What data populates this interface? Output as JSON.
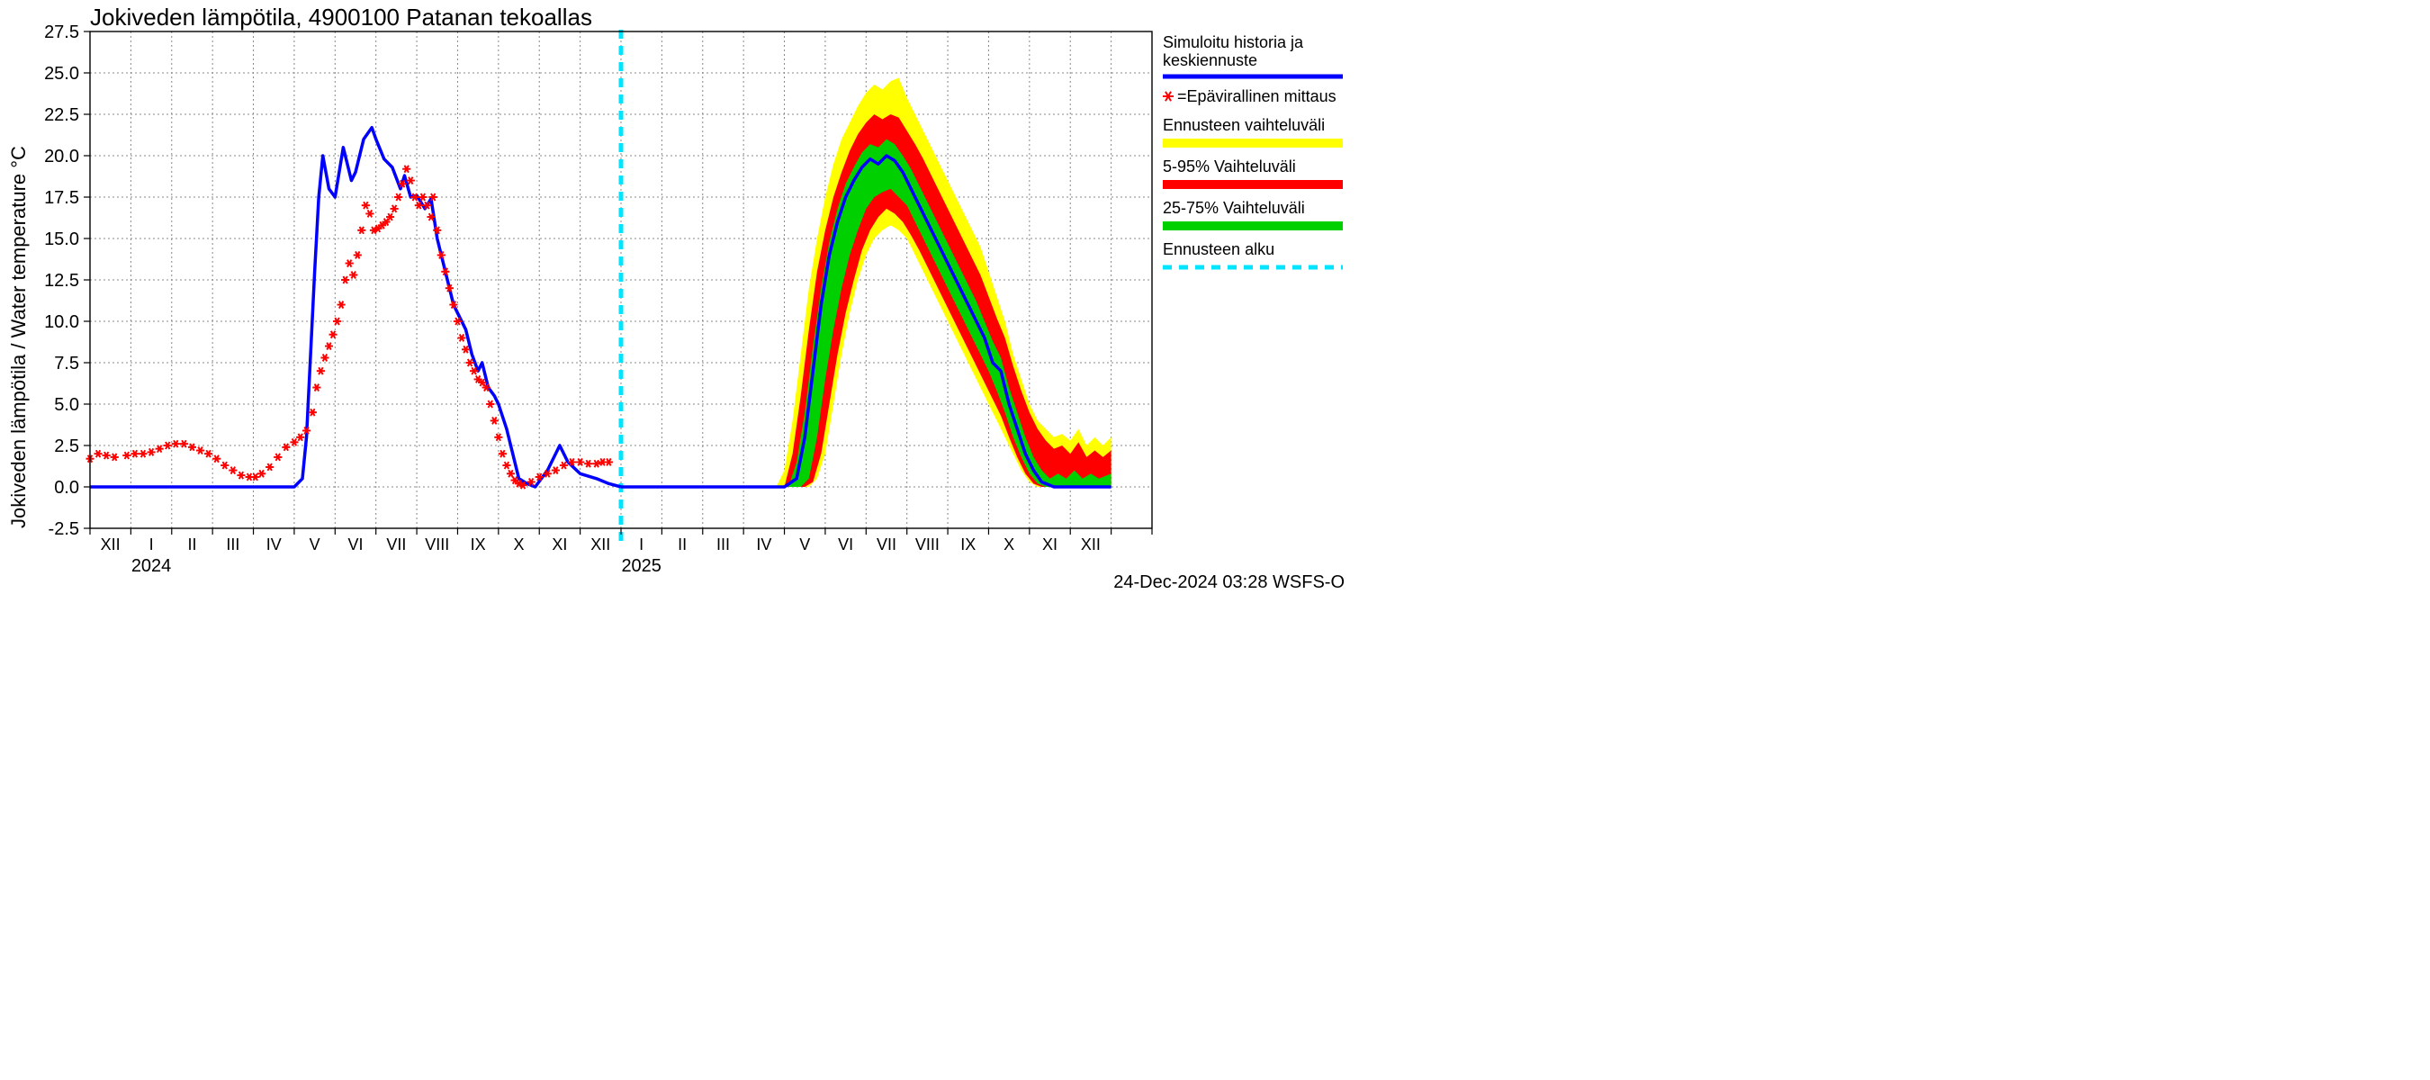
{
  "chart": {
    "type": "line",
    "title": "Jokiveden lämpötila, 4900100 Patanan tekoallas",
    "y_axis_label": "Jokiveden lämpötila / Water temperature   °C",
    "footer": "24-Dec-2024 03:28 WSFS-O",
    "background_color": "#ffffff",
    "grid_color": "#888888",
    "axis_color": "#000000",
    "title_fontsize": 26,
    "label_fontsize": 22,
    "tick_fontsize": 20,
    "xlim_months": 26,
    "ylim": [
      -2.5,
      27.5
    ],
    "ytick_step": 2.5,
    "y_ticks": [
      -2.5,
      0.0,
      2.5,
      5.0,
      7.5,
      10.0,
      12.5,
      15.0,
      17.5,
      20.0,
      22.5,
      25.0,
      27.5
    ],
    "x_month_labels": [
      "XII",
      "I",
      "II",
      "III",
      "IV",
      "V",
      "VI",
      "VII",
      "VIII",
      "IX",
      "X",
      "XI",
      "XII",
      "I",
      "II",
      "III",
      "IV",
      "V",
      "VI",
      "VII",
      "VIII",
      "IX",
      "X",
      "XI",
      "XII"
    ],
    "year_labels": [
      {
        "label": "2024",
        "month_index": 1.5
      },
      {
        "label": "2025",
        "month_index": 13.5
      }
    ],
    "forecast_start_month": 13.0,
    "legend": [
      {
        "key": "sim",
        "label_line1": "Simuloitu historia ja",
        "label_line2": "keskiennuste",
        "color": "#0000ff",
        "type": "line",
        "width": 4
      },
      {
        "key": "meas",
        "label_line1": "=Epävirallinen mittaus",
        "color": "#ff0000",
        "type": "marker",
        "marker": "*"
      },
      {
        "key": "range_full",
        "label_line1": "Ennusteen vaihteluväli",
        "color": "#ffff00",
        "type": "band"
      },
      {
        "key": "range_5_95",
        "label_line1": "5-95% Vaihteluväli",
        "color": "#ff0000",
        "type": "band"
      },
      {
        "key": "range_25_75",
        "label_line1": "25-75% Vaihteluväli",
        "color": "#00d000",
        "type": "band"
      },
      {
        "key": "forecast_start",
        "label_line1": "Ennusteen alku",
        "color": "#00e5ff",
        "type": "dash",
        "width": 5
      }
    ],
    "colors": {
      "sim_line": "#0000ff",
      "measured": "#ff0000",
      "band_yellow": "#ffff00",
      "band_red": "#ff0000",
      "band_green": "#00d000",
      "forecast_dash": "#00e5ff"
    },
    "line_width": 3.5,
    "marker_size": 9,
    "sim_history": [
      [
        0.0,
        0.0
      ],
      [
        0.2,
        0.0
      ],
      [
        5.0,
        0.0
      ],
      [
        5.2,
        0.5
      ],
      [
        5.3,
        3.0
      ],
      [
        5.4,
        8.0
      ],
      [
        5.5,
        13.0
      ],
      [
        5.6,
        17.5
      ],
      [
        5.7,
        20.0
      ],
      [
        5.85,
        18.0
      ],
      [
        6.0,
        17.5
      ],
      [
        6.2,
        20.5
      ],
      [
        6.4,
        18.5
      ],
      [
        6.5,
        19.0
      ],
      [
        6.7,
        21.0
      ],
      [
        6.9,
        21.7
      ],
      [
        7.0,
        21.0
      ],
      [
        7.2,
        19.8
      ],
      [
        7.4,
        19.3
      ],
      [
        7.6,
        18.0
      ],
      [
        7.7,
        18.8
      ],
      [
        7.85,
        17.5
      ],
      [
        8.0,
        17.6
      ],
      [
        8.2,
        16.8
      ],
      [
        8.35,
        17.4
      ],
      [
        8.5,
        15.0
      ],
      [
        8.7,
        13.0
      ],
      [
        8.9,
        11.0
      ],
      [
        9.0,
        10.5
      ],
      [
        9.2,
        9.5
      ],
      [
        9.35,
        8.0
      ],
      [
        9.5,
        7.0
      ],
      [
        9.6,
        7.5
      ],
      [
        9.75,
        6.0
      ],
      [
        9.9,
        5.5
      ],
      [
        10.0,
        5.0
      ],
      [
        10.2,
        3.5
      ],
      [
        10.4,
        1.5
      ],
      [
        10.5,
        0.5
      ],
      [
        10.7,
        0.2
      ],
      [
        10.9,
        0.0
      ],
      [
        11.2,
        1.0
      ],
      [
        11.5,
        2.5
      ],
      [
        11.7,
        1.5
      ],
      [
        12.0,
        0.8
      ],
      [
        12.4,
        0.5
      ],
      [
        12.7,
        0.2
      ],
      [
        13.0,
        0.0
      ]
    ],
    "measured": [
      [
        0.0,
        1.7
      ],
      [
        0.2,
        2.0
      ],
      [
        0.4,
        1.9
      ],
      [
        0.6,
        1.8
      ],
      [
        0.9,
        1.9
      ],
      [
        1.1,
        2.0
      ],
      [
        1.3,
        2.0
      ],
      [
        1.5,
        2.1
      ],
      [
        1.7,
        2.3
      ],
      [
        1.9,
        2.5
      ],
      [
        2.1,
        2.6
      ],
      [
        2.3,
        2.6
      ],
      [
        2.5,
        2.4
      ],
      [
        2.7,
        2.2
      ],
      [
        2.9,
        2.0
      ],
      [
        3.1,
        1.7
      ],
      [
        3.3,
        1.3
      ],
      [
        3.5,
        1.0
      ],
      [
        3.7,
        0.7
      ],
      [
        3.9,
        0.6
      ],
      [
        4.05,
        0.6
      ],
      [
        4.2,
        0.8
      ],
      [
        4.4,
        1.2
      ],
      [
        4.6,
        1.8
      ],
      [
        4.8,
        2.4
      ],
      [
        5.0,
        2.7
      ],
      [
        5.15,
        3.0
      ],
      [
        5.3,
        3.4
      ],
      [
        5.45,
        4.5
      ],
      [
        5.55,
        6.0
      ],
      [
        5.65,
        7.0
      ],
      [
        5.75,
        7.8
      ],
      [
        5.85,
        8.5
      ],
      [
        5.95,
        9.2
      ],
      [
        6.05,
        10.0
      ],
      [
        6.15,
        11.0
      ],
      [
        6.25,
        12.5
      ],
      [
        6.35,
        13.5
      ],
      [
        6.45,
        12.8
      ],
      [
        6.55,
        14.0
      ],
      [
        6.65,
        15.5
      ],
      [
        6.75,
        17.0
      ],
      [
        6.85,
        16.5
      ],
      [
        6.95,
        15.5
      ],
      [
        7.05,
        15.6
      ],
      [
        7.15,
        15.8
      ],
      [
        7.25,
        16.0
      ],
      [
        7.35,
        16.3
      ],
      [
        7.45,
        16.8
      ],
      [
        7.55,
        17.5
      ],
      [
        7.65,
        18.3
      ],
      [
        7.75,
        19.2
      ],
      [
        7.85,
        18.5
      ],
      [
        7.95,
        17.5
      ],
      [
        8.05,
        17.0
      ],
      [
        8.15,
        17.5
      ],
      [
        8.25,
        17.0
      ],
      [
        8.35,
        16.3
      ],
      [
        8.4,
        17.5
      ],
      [
        8.5,
        15.5
      ],
      [
        8.6,
        14.0
      ],
      [
        8.7,
        13.0
      ],
      [
        8.8,
        12.0
      ],
      [
        8.9,
        11.0
      ],
      [
        9.0,
        10.0
      ],
      [
        9.1,
        9.0
      ],
      [
        9.2,
        8.3
      ],
      [
        9.3,
        7.5
      ],
      [
        9.4,
        7.0
      ],
      [
        9.5,
        6.5
      ],
      [
        9.6,
        6.3
      ],
      [
        9.7,
        6.0
      ],
      [
        9.8,
        5.0
      ],
      [
        9.9,
        4.0
      ],
      [
        10.0,
        3.0
      ],
      [
        10.1,
        2.0
      ],
      [
        10.2,
        1.3
      ],
      [
        10.3,
        0.8
      ],
      [
        10.4,
        0.4
      ],
      [
        10.5,
        0.2
      ],
      [
        10.6,
        0.1
      ],
      [
        10.8,
        0.3
      ],
      [
        11.0,
        0.6
      ],
      [
        11.2,
        0.8
      ],
      [
        11.4,
        1.0
      ],
      [
        11.6,
        1.3
      ],
      [
        11.8,
        1.5
      ],
      [
        12.0,
        1.5
      ],
      [
        12.2,
        1.4
      ],
      [
        12.4,
        1.4
      ],
      [
        12.55,
        1.5
      ],
      [
        12.7,
        1.5
      ]
    ],
    "forecast_center": [
      [
        13.0,
        0.0
      ],
      [
        16.5,
        0.0
      ],
      [
        17.0,
        0.0
      ],
      [
        17.3,
        0.5
      ],
      [
        17.5,
        3.0
      ],
      [
        17.7,
        7.0
      ],
      [
        17.9,
        11.0
      ],
      [
        18.1,
        14.0
      ],
      [
        18.3,
        16.0
      ],
      [
        18.5,
        17.5
      ],
      [
        18.7,
        18.5
      ],
      [
        18.9,
        19.3
      ],
      [
        19.1,
        19.8
      ],
      [
        19.3,
        19.5
      ],
      [
        19.5,
        20.0
      ],
      [
        19.7,
        19.7
      ],
      [
        19.9,
        19.0
      ],
      [
        20.1,
        18.0
      ],
      [
        20.3,
        17.0
      ],
      [
        20.5,
        16.0
      ],
      [
        20.7,
        15.0
      ],
      [
        20.9,
        14.0
      ],
      [
        21.1,
        13.0
      ],
      [
        21.3,
        12.0
      ],
      [
        21.5,
        11.0
      ],
      [
        21.7,
        10.0
      ],
      [
        21.9,
        9.0
      ],
      [
        22.1,
        7.5
      ],
      [
        22.3,
        7.0
      ],
      [
        22.5,
        5.0
      ],
      [
        22.7,
        3.5
      ],
      [
        22.9,
        2.0
      ],
      [
        23.1,
        1.0
      ],
      [
        23.3,
        0.3
      ],
      [
        23.6,
        0.0
      ],
      [
        25.0,
        0.0
      ]
    ],
    "band_yellow_upper": [
      [
        16.8,
        0.0
      ],
      [
        17.0,
        1.0
      ],
      [
        17.2,
        4.0
      ],
      [
        17.4,
        8.0
      ],
      [
        17.6,
        12.0
      ],
      [
        17.8,
        15.0
      ],
      [
        18.0,
        17.5
      ],
      [
        18.2,
        19.5
      ],
      [
        18.4,
        21.0
      ],
      [
        18.6,
        22.0
      ],
      [
        18.8,
        23.0
      ],
      [
        19.0,
        23.8
      ],
      [
        19.2,
        24.3
      ],
      [
        19.4,
        24.0
      ],
      [
        19.6,
        24.5
      ],
      [
        19.8,
        24.7
      ],
      [
        20.0,
        23.5
      ],
      [
        20.2,
        22.5
      ],
      [
        20.4,
        21.5
      ],
      [
        20.6,
        20.5
      ],
      [
        20.8,
        19.5
      ],
      [
        21.0,
        18.5
      ],
      [
        21.2,
        17.5
      ],
      [
        21.4,
        16.5
      ],
      [
        21.6,
        15.5
      ],
      [
        21.8,
        14.5
      ],
      [
        22.0,
        13.0
      ],
      [
        22.2,
        11.5
      ],
      [
        22.4,
        10.0
      ],
      [
        22.6,
        8.0
      ],
      [
        22.8,
        6.5
      ],
      [
        23.0,
        5.0
      ],
      [
        23.2,
        4.0
      ],
      [
        23.4,
        3.5
      ],
      [
        23.6,
        3.0
      ],
      [
        23.8,
        3.2
      ],
      [
        24.0,
        2.8
      ],
      [
        24.2,
        3.5
      ],
      [
        24.4,
        2.5
      ],
      [
        24.6,
        3.0
      ],
      [
        24.8,
        2.5
      ],
      [
        25.0,
        3.0
      ]
    ],
    "band_yellow_lower": [
      [
        16.8,
        0.0
      ],
      [
        17.6,
        0.0
      ],
      [
        17.8,
        0.5
      ],
      [
        18.0,
        2.0
      ],
      [
        18.2,
        5.0
      ],
      [
        18.4,
        8.0
      ],
      [
        18.6,
        10.5
      ],
      [
        18.8,
        12.5
      ],
      [
        19.0,
        14.0
      ],
      [
        19.2,
        15.0
      ],
      [
        19.4,
        15.5
      ],
      [
        19.6,
        15.8
      ],
      [
        19.8,
        15.5
      ],
      [
        20.0,
        15.0
      ],
      [
        20.2,
        14.0
      ],
      [
        20.4,
        13.0
      ],
      [
        20.6,
        12.0
      ],
      [
        20.8,
        11.0
      ],
      [
        21.0,
        10.0
      ],
      [
        21.2,
        9.0
      ],
      [
        21.4,
        8.0
      ],
      [
        21.6,
        7.0
      ],
      [
        21.8,
        6.0
      ],
      [
        22.0,
        5.0
      ],
      [
        22.2,
        4.0
      ],
      [
        22.4,
        3.0
      ],
      [
        22.6,
        2.0
      ],
      [
        22.8,
        1.0
      ],
      [
        23.0,
        0.3
      ],
      [
        23.2,
        0.0
      ],
      [
        25.0,
        0.0
      ]
    ],
    "band_red_upper": [
      [
        17.0,
        0.0
      ],
      [
        17.2,
        2.0
      ],
      [
        17.4,
        5.5
      ],
      [
        17.6,
        9.5
      ],
      [
        17.8,
        13.0
      ],
      [
        18.0,
        15.5
      ],
      [
        18.2,
        17.5
      ],
      [
        18.4,
        19.0
      ],
      [
        18.6,
        20.3
      ],
      [
        18.8,
        21.3
      ],
      [
        19.0,
        22.0
      ],
      [
        19.2,
        22.5
      ],
      [
        19.4,
        22.2
      ],
      [
        19.6,
        22.5
      ],
      [
        19.8,
        22.3
      ],
      [
        20.0,
        21.5
      ],
      [
        20.2,
        20.7
      ],
      [
        20.4,
        19.8
      ],
      [
        20.6,
        18.8
      ],
      [
        20.8,
        17.8
      ],
      [
        21.0,
        16.8
      ],
      [
        21.2,
        15.8
      ],
      [
        21.4,
        14.8
      ],
      [
        21.6,
        13.8
      ],
      [
        21.8,
        12.8
      ],
      [
        22.0,
        11.5
      ],
      [
        22.2,
        10.2
      ],
      [
        22.4,
        9.0
      ],
      [
        22.6,
        7.3
      ],
      [
        22.8,
        5.8
      ],
      [
        23.0,
        4.5
      ],
      [
        23.2,
        3.5
      ],
      [
        23.4,
        2.8
      ],
      [
        23.6,
        2.3
      ],
      [
        23.8,
        2.5
      ],
      [
        24.0,
        2.0
      ],
      [
        24.2,
        2.7
      ],
      [
        24.4,
        1.8
      ],
      [
        24.6,
        2.2
      ],
      [
        24.8,
        1.8
      ],
      [
        25.0,
        2.2
      ]
    ],
    "band_red_lower": [
      [
        17.0,
        0.0
      ],
      [
        17.5,
        0.0
      ],
      [
        17.7,
        0.3
      ],
      [
        17.9,
        2.0
      ],
      [
        18.1,
        5.0
      ],
      [
        18.3,
        8.0
      ],
      [
        18.5,
        10.5
      ],
      [
        18.7,
        12.5
      ],
      [
        18.9,
        14.3
      ],
      [
        19.1,
        15.5
      ],
      [
        19.3,
        16.3
      ],
      [
        19.5,
        16.8
      ],
      [
        19.7,
        16.5
      ],
      [
        19.9,
        16.0
      ],
      [
        20.1,
        15.2
      ],
      [
        20.3,
        14.3
      ],
      [
        20.5,
        13.3
      ],
      [
        20.7,
        12.3
      ],
      [
        20.9,
        11.3
      ],
      [
        21.1,
        10.3
      ],
      [
        21.3,
        9.3
      ],
      [
        21.5,
        8.3
      ],
      [
        21.7,
        7.3
      ],
      [
        21.9,
        6.3
      ],
      [
        22.1,
        5.3
      ],
      [
        22.3,
        4.3
      ],
      [
        22.5,
        3.0
      ],
      [
        22.7,
        1.8
      ],
      [
        22.9,
        0.8
      ],
      [
        23.1,
        0.2
      ],
      [
        23.3,
        0.0
      ],
      [
        25.0,
        0.0
      ]
    ],
    "band_green_upper": [
      [
        17.1,
        0.0
      ],
      [
        17.3,
        1.5
      ],
      [
        17.5,
        4.5
      ],
      [
        17.7,
        8.5
      ],
      [
        17.9,
        12.0
      ],
      [
        18.1,
        14.8
      ],
      [
        18.3,
        16.8
      ],
      [
        18.5,
        18.3
      ],
      [
        18.7,
        19.3
      ],
      [
        18.9,
        20.2
      ],
      [
        19.1,
        20.7
      ],
      [
        19.3,
        20.5
      ],
      [
        19.5,
        21.0
      ],
      [
        19.7,
        20.7
      ],
      [
        19.9,
        20.0
      ],
      [
        20.1,
        19.2
      ],
      [
        20.3,
        18.2
      ],
      [
        20.5,
        17.2
      ],
      [
        20.7,
        16.2
      ],
      [
        20.9,
        15.2
      ],
      [
        21.1,
        14.2
      ],
      [
        21.3,
        13.2
      ],
      [
        21.5,
        12.2
      ],
      [
        21.7,
        11.2
      ],
      [
        21.9,
        10.0
      ],
      [
        22.1,
        8.8
      ],
      [
        22.3,
        7.8
      ],
      [
        22.5,
        6.0
      ],
      [
        22.7,
        4.5
      ],
      [
        22.9,
        3.0
      ],
      [
        23.1,
        1.8
      ],
      [
        23.3,
        1.0
      ],
      [
        23.5,
        0.5
      ],
      [
        23.7,
        0.8
      ],
      [
        23.9,
        0.5
      ],
      [
        24.1,
        1.0
      ],
      [
        24.3,
        0.5
      ],
      [
        24.5,
        0.8
      ],
      [
        24.7,
        0.5
      ],
      [
        25.0,
        0.8
      ]
    ],
    "band_green_lower": [
      [
        17.1,
        0.0
      ],
      [
        17.4,
        0.0
      ],
      [
        17.6,
        0.5
      ],
      [
        17.8,
        3.0
      ],
      [
        18.0,
        6.5
      ],
      [
        18.2,
        9.5
      ],
      [
        18.4,
        12.0
      ],
      [
        18.6,
        14.0
      ],
      [
        18.8,
        15.5
      ],
      [
        19.0,
        16.8
      ],
      [
        19.2,
        17.5
      ],
      [
        19.4,
        17.8
      ],
      [
        19.6,
        18.0
      ],
      [
        19.8,
        17.5
      ],
      [
        20.0,
        17.0
      ],
      [
        20.2,
        16.0
      ],
      [
        20.4,
        15.0
      ],
      [
        20.6,
        14.0
      ],
      [
        20.8,
        13.0
      ],
      [
        21.0,
        12.0
      ],
      [
        21.2,
        11.0
      ],
      [
        21.4,
        10.0
      ],
      [
        21.6,
        9.0
      ],
      [
        21.8,
        8.0
      ],
      [
        22.0,
        7.0
      ],
      [
        22.2,
        5.8
      ],
      [
        22.4,
        4.5
      ],
      [
        22.6,
        3.0
      ],
      [
        22.8,
        1.8
      ],
      [
        23.0,
        0.8
      ],
      [
        23.2,
        0.2
      ],
      [
        23.4,
        0.0
      ],
      [
        25.0,
        0.0
      ]
    ]
  }
}
